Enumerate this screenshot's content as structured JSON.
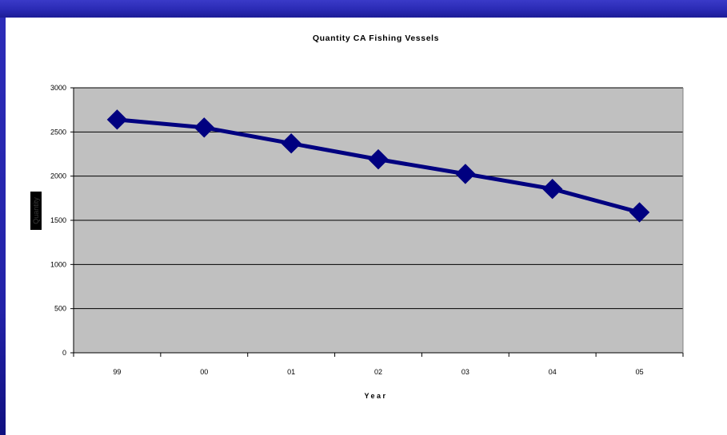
{
  "colors": {
    "frame_blue": "#2a2ab4",
    "plot_background": "#c0c0c0",
    "line_and_markers": "#000080",
    "gridline": "#000000"
  },
  "chart_data": {
    "type": "line",
    "title": "Quantity CA Fishing Vessels",
    "xlabel": "Year",
    "ylabel": "Quantity",
    "categories": [
      "99",
      "00",
      "01",
      "02",
      "03",
      "04",
      "05"
    ],
    "series": [
      {
        "values": [
          2640,
          2550,
          2370,
          2190,
          2025,
          1855,
          1590
        ],
        "marker": "diamond"
      }
    ],
    "ylim": [
      0,
      3000
    ],
    "yticks": [
      0,
      500,
      1000,
      1500,
      2000,
      2500,
      3000
    ],
    "grid": true,
    "legend": "none"
  }
}
